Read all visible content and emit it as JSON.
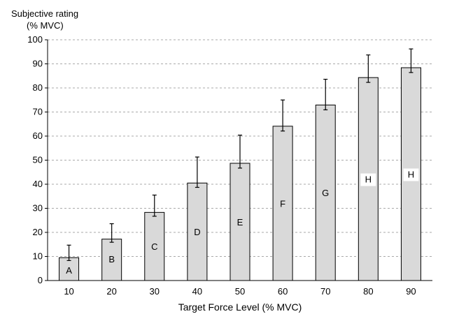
{
  "chart_data": {
    "type": "bar",
    "ylabel_lines": [
      "Subjective rating",
      "(% MVC)"
    ],
    "xlabel": "Target Force Level (% MVC)",
    "categories": [
      "10",
      "20",
      "30",
      "40",
      "50",
      "60",
      "70",
      "80",
      "90"
    ],
    "values": [
      9.5,
      17.2,
      28.3,
      40.5,
      48.7,
      64.1,
      72.9,
      84.3,
      88.4
    ],
    "error_plus": [
      5.2,
      6.4,
      7.2,
      10.8,
      11.7,
      10.9,
      10.7,
      9.4,
      7.8
    ],
    "error_minus": [
      1.2,
      1.3,
      1.6,
      1.8,
      2.0,
      2.0,
      2.0,
      2.0,
      2.0
    ],
    "bar_labels": [
      "A",
      "B",
      "C",
      "D",
      "E",
      "F",
      "G",
      "H",
      "H"
    ],
    "yticks": [
      "0",
      "10",
      "20",
      "30",
      "40",
      "50",
      "60",
      "70",
      "80",
      "90",
      "100"
    ],
    "ylim": [
      0,
      100
    ],
    "grid": "horizontal dashed",
    "colors": {
      "bar_fill": "#d9d9d9",
      "bar_stroke": "#000000",
      "grid": "#aaaaaa"
    }
  }
}
